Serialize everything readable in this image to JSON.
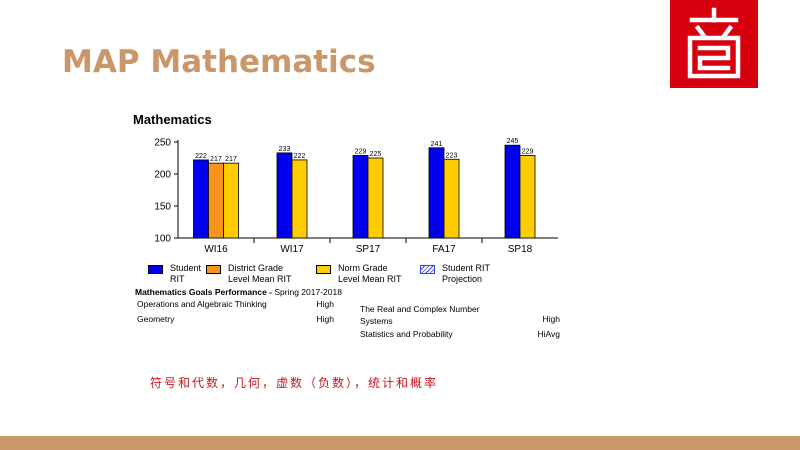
{
  "slide": {
    "title": "MAP Mathematics",
    "caption": "符号和代数，几何，虚数（负数），统计和概率",
    "brand_color": "#d7000f",
    "accent_color": "#c9976a",
    "caption_color": "#c8161e"
  },
  "chart_data": {
    "type": "bar",
    "title": "Mathematics",
    "categories": [
      "WI16",
      "WI17",
      "SP17",
      "FA17",
      "SP18"
    ],
    "ylim": [
      100,
      250
    ],
    "yticks": [
      100,
      150,
      200,
      250
    ],
    "grid": false,
    "series": [
      {
        "name": "Student RIT",
        "color": "#0000ee",
        "values": [
          222,
          233,
          229,
          241,
          245
        ]
      },
      {
        "name": "District Grade Level Mean RIT",
        "color": "#f7941d",
        "values": [
          217,
          null,
          null,
          null,
          null
        ]
      },
      {
        "name": "Norm Grade Level Mean RIT",
        "color": "#ffcc00",
        "values": [
          217,
          222,
          225,
          223,
          229
        ]
      }
    ],
    "legend": {
      "placement": "bottom",
      "items": [
        {
          "label": "Student RIT",
          "color": "#0000ee",
          "style": "solid"
        },
        {
          "label": "District Grade Level Mean RIT",
          "color": "#f7941d",
          "style": "solid"
        },
        {
          "label": "Norm Grade Level Mean RIT",
          "color": "#ffcc00",
          "style": "solid"
        },
        {
          "label": "Student RIT Projection",
          "color": "#3344ee",
          "style": "hatched"
        }
      ]
    }
  },
  "goals": {
    "title_bold": "Mathematics Goals Performance -",
    "title_rest": "Spring 2017-2018",
    "items": [
      {
        "name": "Operations and Algebraic Thinking",
        "level": "High"
      },
      {
        "name": "Geometry",
        "level": "High"
      },
      {
        "name": "The Real and Complex Number Systems",
        "level": "High"
      },
      {
        "name": "Statistics and Probability",
        "level": "HiAvg"
      }
    ]
  }
}
